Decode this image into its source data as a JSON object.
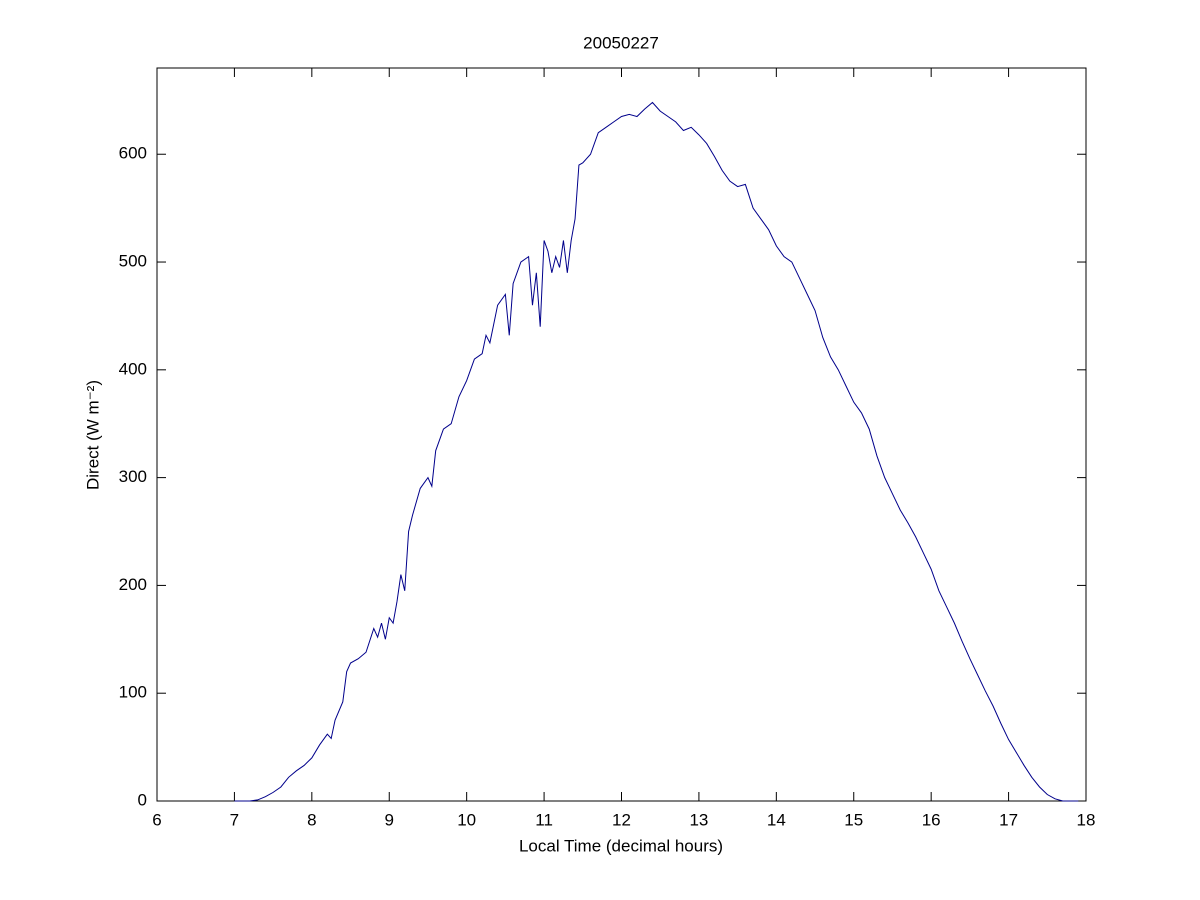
{
  "chart_data": {
    "type": "line",
    "title": "20050227",
    "x_label": "Local Time (decimal hours)",
    "y_label": "Direct (W m⁻²)",
    "x": [
      7.0,
      7.1,
      7.2,
      7.3,
      7.4,
      7.5,
      7.6,
      7.7,
      7.8,
      7.9,
      8.0,
      8.1,
      8.2,
      8.25,
      8.3,
      8.4,
      8.45,
      8.5,
      8.6,
      8.7,
      8.8,
      8.85,
      8.9,
      8.95,
      9.0,
      9.05,
      9.1,
      9.15,
      9.2,
      9.25,
      9.3,
      9.4,
      9.5,
      9.55,
      9.6,
      9.7,
      9.8,
      9.9,
      10.0,
      10.1,
      10.2,
      10.25,
      10.3,
      10.4,
      10.5,
      10.55,
      10.6,
      10.7,
      10.8,
      10.85,
      10.9,
      10.95,
      11.0,
      11.05,
      11.1,
      11.15,
      11.2,
      11.25,
      11.3,
      11.35,
      11.4,
      11.45,
      11.5,
      11.6,
      11.7,
      11.8,
      11.9,
      12.0,
      12.1,
      12.2,
      12.3,
      12.4,
      12.5,
      12.6,
      12.7,
      12.8,
      12.9,
      13.0,
      13.1,
      13.2,
      13.3,
      13.4,
      13.5,
      13.6,
      13.7,
      13.8,
      13.9,
      14.0,
      14.1,
      14.2,
      14.3,
      14.4,
      14.5,
      14.6,
      14.7,
      14.8,
      14.9,
      15.0,
      15.1,
      15.2,
      15.3,
      15.4,
      15.5,
      15.6,
      15.7,
      15.8,
      15.9,
      16.0,
      16.1,
      16.2,
      16.3,
      16.4,
      16.5,
      16.6,
      16.7,
      16.8,
      16.9,
      17.0,
      17.1,
      17.2,
      17.3,
      17.4,
      17.5,
      17.6,
      17.7,
      17.8,
      17.9
    ],
    "series": [
      {
        "name": "Direct",
        "color": "#00008b",
        "values": [
          0,
          0,
          0,
          1,
          4,
          8,
          13,
          22,
          28,
          33,
          40,
          52,
          62,
          58,
          75,
          92,
          120,
          128,
          132,
          138,
          160,
          152,
          165,
          150,
          170,
          165,
          185,
          210,
          195,
          250,
          265,
          290,
          300,
          292,
          325,
          345,
          350,
          375,
          390,
          410,
          415,
          432,
          425,
          460,
          470,
          432,
          480,
          500,
          505,
          460,
          490,
          440,
          520,
          510,
          490,
          505,
          495,
          520,
          490,
          520,
          540,
          590,
          592,
          600,
          620,
          625,
          630,
          635,
          637,
          635,
          642,
          648,
          640,
          635,
          630,
          622,
          625,
          618,
          610,
          598,
          585,
          575,
          570,
          572,
          550,
          540,
          530,
          515,
          505,
          500,
          485,
          470,
          455,
          430,
          412,
          400,
          385,
          370,
          360,
          345,
          320,
          300,
          285,
          270,
          258,
          245,
          230,
          215,
          195,
          180,
          165,
          148,
          132,
          117,
          102,
          88,
          72,
          57,
          45,
          33,
          22,
          13,
          6,
          2,
          0,
          0,
          0
        ]
      }
    ],
    "xlim": [
      6,
      18
    ],
    "ylim": [
      0,
      680
    ],
    "xticks": [
      6,
      7,
      8,
      9,
      10,
      11,
      12,
      13,
      14,
      15,
      16,
      17,
      18
    ],
    "yticks": [
      0,
      100,
      200,
      300,
      400,
      500,
      600
    ]
  }
}
